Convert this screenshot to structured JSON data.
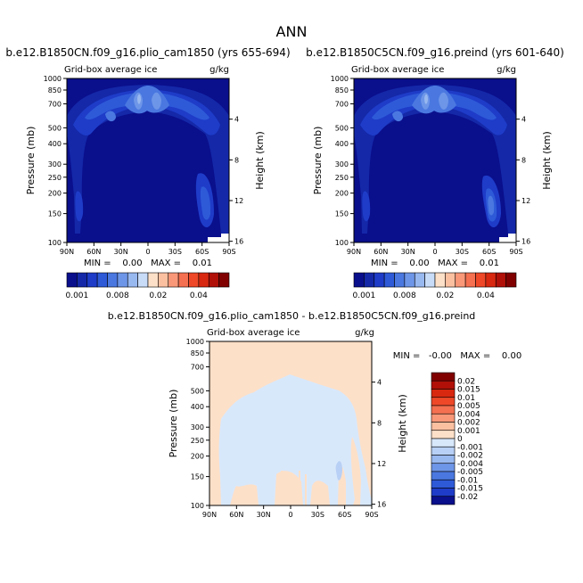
{
  "page_title": "ANN",
  "colors": {
    "ticks_main": [
      "#0a0f8c",
      "#1428a8",
      "#1e3cc8",
      "#2e5ad8",
      "#4a78e0",
      "#6e96e8",
      "#98b8f0",
      "#c8dcf8",
      "#fde0c8",
      "#fbc0a0",
      "#f89878",
      "#f47050",
      "#ee4828",
      "#d82810",
      "#b01008",
      "#800000"
    ],
    "diff_scale": [
      "#800000",
      "#b01008",
      "#d82810",
      "#ee4828",
      "#f47050",
      "#f89878",
      "#fbc0a0",
      "#fde0c8",
      "#d8e8fb",
      "#b8d0f5",
      "#98b8f0",
      "#6e96e8",
      "#4a78e0",
      "#2e5ad8",
      "#1e3cc8",
      "#0a0f8c"
    ],
    "field_dark": "#0a0f8c",
    "field_l1": "#1428a8",
    "field_l2": "#1e3cc8",
    "field_l3": "#2e5ad8",
    "field_l4": "#4a78e0",
    "field_l5": "#6e96e8",
    "field_l6": "#98b8f0",
    "diff_blue": "#d8e8fb",
    "diff_orange": "#fde0c8",
    "diff_blue2": "#b8d0f5"
  },
  "panels": [
    {
      "title": "b.e12.B1850CN.f09_g16.plio_cam1850 (yrs 655-694)",
      "subtitle_left": "Grid-box average ice",
      "subtitle_right": "g/kg",
      "min_max": "MIN =    0.00   MAX =    0.01",
      "colorbar_labels": [
        "0.001",
        "0.008",
        "0.02",
        "0.04"
      ]
    },
    {
      "title": "b.e12.B1850C5CN.f09_g16.preind (yrs 601-640)",
      "subtitle_left": "Grid-box average ice",
      "subtitle_right": "g/kg",
      "min_max": "MIN =    0.00   MAX =    0.01",
      "colorbar_labels": [
        "0.001",
        "0.008",
        "0.02",
        "0.04"
      ]
    },
    {
      "title": "b.e12.B1850CN.f09_g16.plio_cam1850 - b.e12.B1850C5CN.f09_g16.preind",
      "subtitle_left": "Grid-box average ice",
      "subtitle_right": "g/kg",
      "min_max": "MIN =   -0.00   MAX =    0.00",
      "colorbar_labels": [
        "0.02",
        "0.015",
        "0.01",
        "0.005",
        "0.004",
        "0.002",
        "0.001",
        "0",
        "-0.001",
        "-0.002",
        "-0.004",
        "-0.005",
        "-0.01",
        "-0.015",
        "-0.02"
      ]
    }
  ],
  "chart_data": [
    {
      "type": "heatmap",
      "title": "b.e12.B1850CN.f09_g16.plio_cam1850 (yrs 655-694)",
      "xlabel": "",
      "ylabel": "Pressure (mb)",
      "y2label": "Height (km)",
      "x_ticks": [
        "90N",
        "60N",
        "30N",
        "0",
        "30S",
        "60S",
        "90S"
      ],
      "y_ticks": [
        1000,
        850,
        700,
        500,
        400,
        300,
        250,
        200,
        150,
        100
      ],
      "y2_ticks": [
        4,
        8,
        12,
        16
      ],
      "ylim": [
        1000,
        100
      ],
      "xlim": [
        90,
        -90
      ],
      "y_scale": "log"
    },
    {
      "type": "heatmap",
      "title": "b.e12.B1850C5CN.f09_g16.preind (yrs 601-640)",
      "xlabel": "",
      "ylabel": "Pressure (mb)",
      "y2label": "Height (km)",
      "x_ticks": [
        "90N",
        "60N",
        "30N",
        "0",
        "30S",
        "60S",
        "90S"
      ],
      "y_ticks": [
        1000,
        850,
        700,
        500,
        400,
        300,
        250,
        200,
        150,
        100
      ],
      "y2_ticks": [
        4,
        8,
        12,
        16
      ],
      "ylim": [
        1000,
        100
      ],
      "xlim": [
        90,
        -90
      ],
      "y_scale": "log"
    },
    {
      "type": "heatmap",
      "title": "b.e12.B1850CN.f09_g16.plio_cam1850 - b.e12.B1850C5CN.f09_g16.preind",
      "xlabel": "",
      "ylabel": "Pressure (mb)",
      "y2label": "Height (km)",
      "x_ticks": [
        "90N",
        "60N",
        "30N",
        "0",
        "30S",
        "60S",
        "90S"
      ],
      "y_ticks": [
        1000,
        850,
        700,
        500,
        400,
        300,
        250,
        200,
        150,
        100
      ],
      "y2_ticks": [
        4,
        8,
        12,
        16
      ],
      "ylim": [
        1000,
        100
      ],
      "xlim": [
        90,
        -90
      ],
      "y_scale": "log"
    }
  ]
}
